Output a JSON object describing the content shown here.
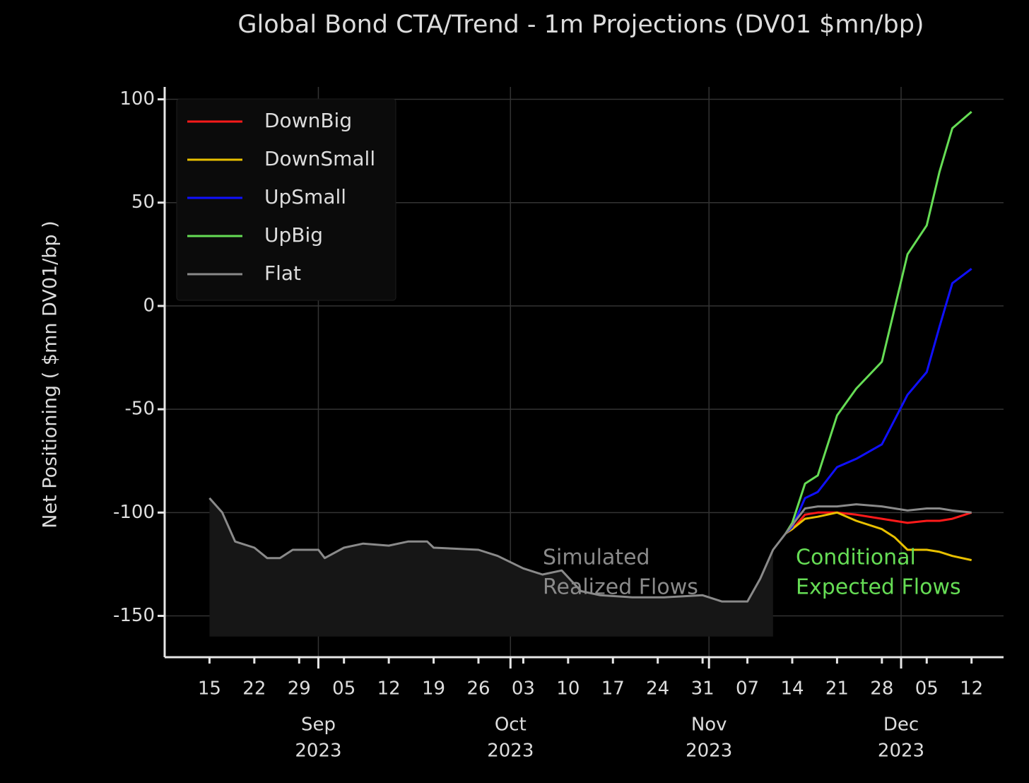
{
  "chart_data": {
    "type": "line",
    "title": "Global Bond CTA/Trend -  1m Projections (DV01 $mn/bp)",
    "ylabel": "Net Positioning  ( $mn DV01/bp )",
    "x": [
      "2023-08-15",
      "2023-08-17",
      "2023-08-19",
      "2023-08-22",
      "2023-08-24",
      "2023-08-26",
      "2023-08-28",
      "2023-09-01",
      "2023-09-02",
      "2023-09-05",
      "2023-09-08",
      "2023-09-12",
      "2023-09-15",
      "2023-09-18",
      "2023-09-19",
      "2023-09-26",
      "2023-09-29",
      "2023-10-03",
      "2023-10-06",
      "2023-10-09",
      "2023-10-12",
      "2023-10-15",
      "2023-10-20",
      "2023-10-25",
      "2023-10-31",
      "2023-11-03",
      "2023-11-07",
      "2023-11-09",
      "2023-11-11",
      "2023-11-13",
      "2023-11-14",
      "2023-11-16",
      "2023-11-18",
      "2023-11-21",
      "2023-11-24",
      "2023-11-28",
      "2023-11-30",
      "2023-12-02",
      "2023-12-05",
      "2023-12-07",
      "2023-12-09",
      "2023-12-12"
    ],
    "series": [
      {
        "name": "DownBig",
        "color": "#ff1a1a",
        "values": [
          null,
          null,
          null,
          null,
          null,
          null,
          null,
          null,
          null,
          null,
          null,
          null,
          null,
          null,
          null,
          null,
          null,
          null,
          null,
          null,
          null,
          null,
          null,
          null,
          null,
          null,
          null,
          null,
          null,
          -110,
          -108,
          -101,
          -100,
          -100,
          -101,
          -103,
          -104,
          -105,
          -104,
          -104,
          -103,
          -100
        ]
      },
      {
        "name": "DownSmall",
        "color": "#e8c000",
        "values": [
          null,
          null,
          null,
          null,
          null,
          null,
          null,
          null,
          null,
          null,
          null,
          null,
          null,
          null,
          null,
          null,
          null,
          null,
          null,
          null,
          null,
          null,
          null,
          null,
          null,
          null,
          null,
          null,
          null,
          -110,
          -108,
          -103,
          -102,
          -100,
          -104,
          -108,
          -112,
          -118,
          -118,
          -119,
          -121,
          -123
        ]
      },
      {
        "name": "UpSmall",
        "color": "#1010ff",
        "values": [
          null,
          null,
          null,
          null,
          null,
          null,
          null,
          null,
          null,
          null,
          null,
          null,
          null,
          null,
          null,
          null,
          null,
          null,
          null,
          null,
          null,
          null,
          null,
          null,
          null,
          null,
          null,
          null,
          null,
          -110,
          -107,
          -93,
          -90,
          -78,
          -74,
          -67,
          -55,
          -43,
          -32,
          -10,
          11,
          18
        ]
      },
      {
        "name": "UpBig",
        "color": "#66dd55",
        "values": [
          null,
          null,
          null,
          null,
          null,
          null,
          null,
          null,
          null,
          null,
          null,
          null,
          null,
          null,
          null,
          null,
          null,
          null,
          null,
          null,
          null,
          null,
          null,
          null,
          null,
          null,
          null,
          null,
          null,
          -110,
          -105,
          -86,
          -82,
          -53,
          -40,
          -27,
          -1,
          25,
          39,
          65,
          86,
          94
        ]
      },
      {
        "name": "Flat",
        "color": "#8a8a8a",
        "values": [
          -93,
          -100,
          -114,
          -117,
          -122,
          -122,
          -118,
          -118,
          -122,
          -117,
          -115,
          -116,
          -114,
          -114,
          -117,
          -118,
          -121,
          -127,
          -130,
          -128,
          -138,
          -140,
          -141,
          -141,
          -140,
          -143,
          -143,
          -132,
          -118,
          -110,
          -106,
          -98,
          -97,
          -97,
          -96,
          -97,
          -98,
          -99,
          -98,
          -98,
          -99,
          -100
        ]
      }
    ],
    "shade": {
      "until": "2023-11-11",
      "to": -160
    },
    "xlim": [
      "2023-08-08",
      "2023-12-17"
    ],
    "ylim": [
      -170,
      106
    ],
    "yticks": [
      -150,
      -100,
      -50,
      0,
      50,
      100
    ],
    "xticks": [
      {
        "value": "2023-08-15",
        "label": "15"
      },
      {
        "value": "2023-08-22",
        "label": "22"
      },
      {
        "value": "2023-08-29",
        "label": "29"
      },
      {
        "value": "2023-09-05",
        "label": "05"
      },
      {
        "value": "2023-09-12",
        "label": "12"
      },
      {
        "value": "2023-09-19",
        "label": "19"
      },
      {
        "value": "2023-09-26",
        "label": "26"
      },
      {
        "value": "2023-10-03",
        "label": "03"
      },
      {
        "value": "2023-10-10",
        "label": "10"
      },
      {
        "value": "2023-10-17",
        "label": "17"
      },
      {
        "value": "2023-10-24",
        "label": "24"
      },
      {
        "value": "2023-10-31",
        "label": "31"
      },
      {
        "value": "2023-11-07",
        "label": "07"
      },
      {
        "value": "2023-11-14",
        "label": "14"
      },
      {
        "value": "2023-11-21",
        "label": "21"
      },
      {
        "value": "2023-11-28",
        "label": "28"
      },
      {
        "value": "2023-12-05",
        "label": "05"
      },
      {
        "value": "2023-12-12",
        "label": "12"
      }
    ],
    "month_ticks": [
      {
        "value": "2023-09-01",
        "label": "Sep",
        "year": "2023"
      },
      {
        "value": "2023-10-01",
        "label": "Oct",
        "year": "2023"
      },
      {
        "value": "2023-11-01",
        "label": "Nov",
        "year": "2023"
      },
      {
        "value": "2023-12-01",
        "label": "Dec",
        "year": "2023"
      }
    ],
    "grid": true,
    "legend": "upper left",
    "annotations": [
      {
        "lines": [
          "Simulated",
          "Realized Flows"
        ],
        "color": "#8a8a8a"
      },
      {
        "lines": [
          "Conditional",
          "Expected Flows"
        ],
        "color": "#66dd55"
      }
    ]
  }
}
